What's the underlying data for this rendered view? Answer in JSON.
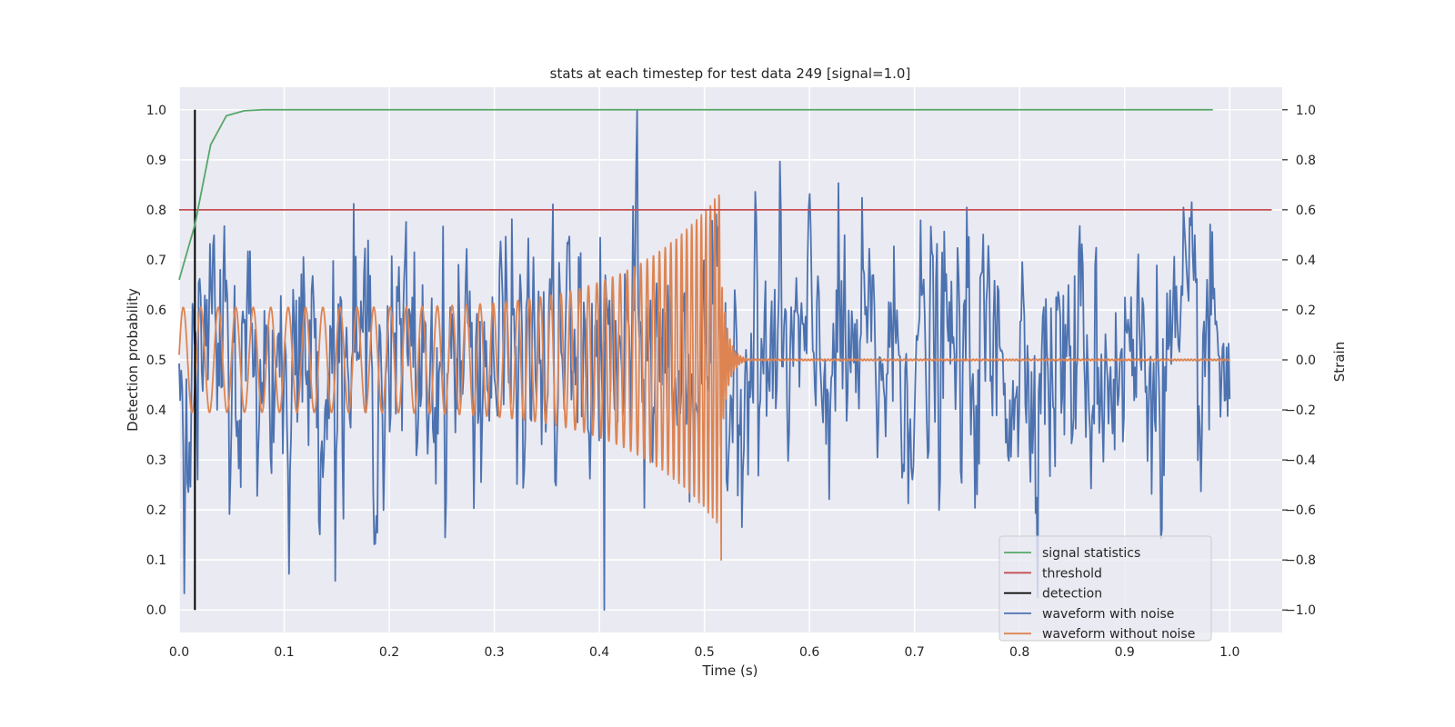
{
  "chart_data": {
    "type": "line",
    "title": "stats at each timestep for test data 249 [signal=1.0]",
    "xlabel": "Time (s)",
    "ylabel": "Detection probability",
    "y2label": "Strain",
    "xlim": [
      0.0,
      1.05
    ],
    "ylim": [
      -0.045,
      1.045
    ],
    "y2lim": [
      -1.09,
      1.09
    ],
    "xticks": [
      0.0,
      0.1,
      0.2,
      0.3,
      0.4,
      0.5,
      0.6,
      0.7,
      0.8,
      0.9,
      1.0
    ],
    "xtick_labels": [
      "0.0",
      "0.1",
      "0.2",
      "0.3",
      "0.4",
      "0.5",
      "0.6",
      "0.7",
      "0.8",
      "0.9",
      "1.0"
    ],
    "yticks": [
      0.0,
      0.1,
      0.2,
      0.3,
      0.4,
      0.5,
      0.6,
      0.7,
      0.8,
      0.9,
      1.0
    ],
    "ytick_labels": [
      "0.0",
      "0.1",
      "0.2",
      "0.3",
      "0.4",
      "0.5",
      "0.6",
      "0.7",
      "0.8",
      "0.9",
      "1.0"
    ],
    "y2ticks": [
      -1.0,
      -0.8,
      -0.6,
      -0.4,
      -0.2,
      0.0,
      0.2,
      0.4,
      0.6,
      0.8,
      1.0
    ],
    "y2tick_labels": [
      "−1.0",
      "−0.8",
      "−0.6",
      "−0.4",
      "−0.2",
      "0.0",
      "0.2",
      "0.4",
      "0.6",
      "0.8",
      "1.0"
    ],
    "grid": true,
    "legend_position": "lower right",
    "series": [
      {
        "name": "signal statistics",
        "axis": "left",
        "color": "#55a868",
        "x": [
          0.0,
          0.015,
          0.03,
          0.045,
          0.062,
          0.08,
          0.1,
          0.2,
          0.4,
          0.6,
          0.8,
          0.984
        ],
        "y": [
          0.66,
          0.77,
          0.93,
          0.988,
          0.998,
          1.0,
          1.0,
          1.0,
          1.0,
          1.0,
          1.0,
          1.0
        ]
      },
      {
        "name": "threshold",
        "axis": "left",
        "color": "#c44e52",
        "x": [
          0.0,
          1.04
        ],
        "y": [
          0.8,
          0.8
        ]
      },
      {
        "name": "detection",
        "axis": "left",
        "color": "#000000",
        "x": [
          0.015,
          0.015
        ],
        "y": [
          0.0,
          1.0
        ]
      },
      {
        "name": "waveform with noise",
        "axis": "right",
        "color": "#4c72b0",
        "x_range": [
          0.0,
          1.0
        ],
        "num_samples": 1024,
        "amplitude_envelope": "roughly constant, peak ±1.0",
        "y_extremes": {
          "max": 1.0,
          "min": -1.0
        }
      },
      {
        "name": "waveform without noise",
        "axis": "right",
        "color": "#dd8452",
        "x_range": [
          0.0,
          1.0
        ],
        "description_points": {
          "start_amplitude": 0.21,
          "peak_time": 0.515,
          "peak_max": 0.67,
          "peak_min": -0.8,
          "ringdown_end": 0.54,
          "start_freq_hz": 60,
          "end_freq_hz": 250
        }
      }
    ]
  },
  "legend": {
    "items": [
      {
        "label": "signal statistics",
        "color": "#55a868"
      },
      {
        "label": "threshold",
        "color": "#c44e52"
      },
      {
        "label": "detection",
        "color": "#000000"
      },
      {
        "label": "waveform with noise",
        "color": "#4c72b0"
      },
      {
        "label": "waveform without noise",
        "color": "#dd8452"
      }
    ]
  },
  "colors": {
    "plot_bg": "#eaeaf2",
    "grid": "#ffffff",
    "text": "#262626"
  }
}
